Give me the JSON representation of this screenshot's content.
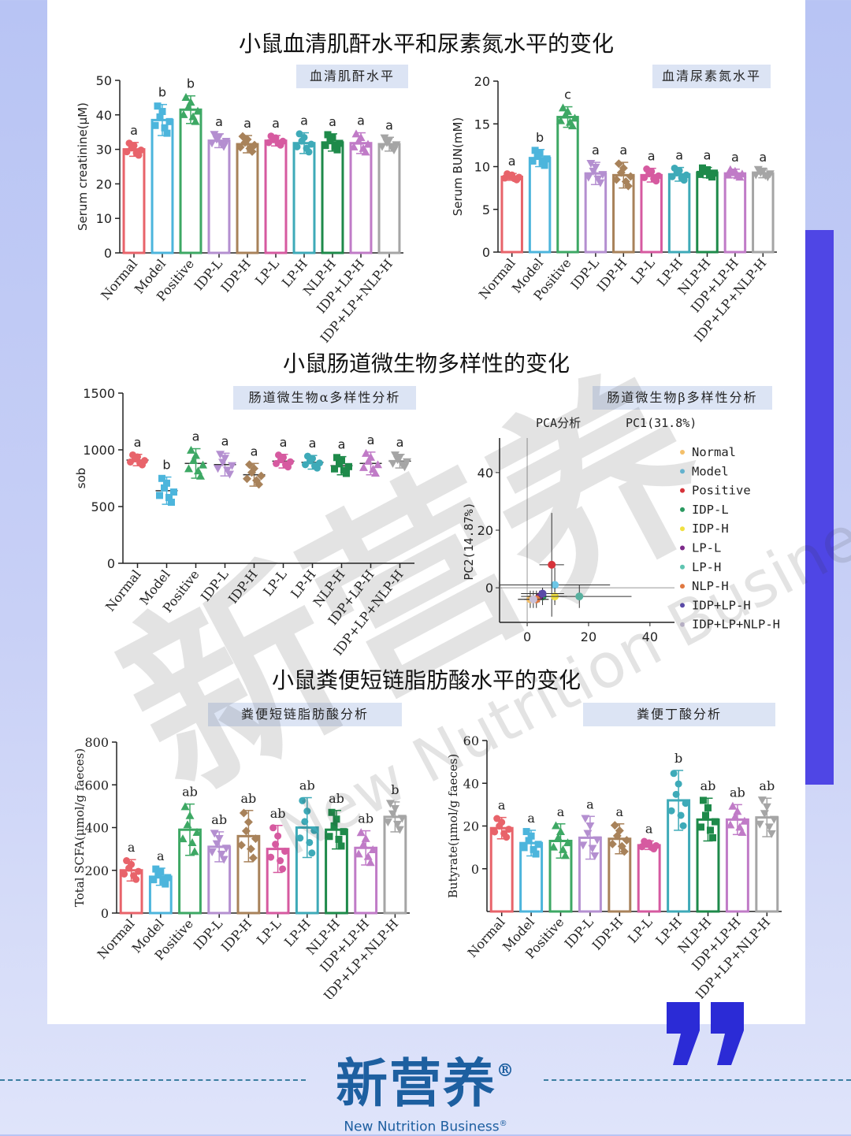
{
  "colors": {
    "Normal": "#e8636a",
    "Model": "#4cb5dc",
    "Positive": "#3da864",
    "IDP-L": "#b48fd0",
    "IDP-H": "#a8825a",
    "LP-L": "#d65aa0",
    "LP-H": "#3eaab8",
    "NLP-H": "#1e8a4a",
    "IDP+LP-H": "#c07bc7",
    "IDP+LP+NLP-H": "#a5a5a5",
    "accent": "#4f46e5",
    "label_bg": "#dce4f4",
    "brand": "#1d5fa0"
  },
  "sections": {
    "kidney_title": "小鼠血清肌酐水平和尿素氮水平的变化",
    "micro_title": "小鼠肠道微生物多样性的变化",
    "scfa_title": "小鼠粪便短链脂肪酸水平的变化"
  },
  "panels": {
    "creatinine": "血清肌酐水平",
    "bun": "血清尿素氮水平",
    "alpha": "肠道微生物α多样性分析",
    "beta": "肠道微生物β多样性分析",
    "scfa": "粪便短链脂肪酸分析",
    "butyrate": "粪便丁酸分析"
  },
  "brand": {
    "name_cn": "新营养",
    "reg": "®",
    "name_en": "New Nutrition Business",
    "reg_en": "®"
  },
  "icons": {
    "quote": "closing-quote-icon"
  },
  "chart_data": [
    {
      "id": "creatinine",
      "type": "bar",
      "categories": [
        "Normal",
        "Model",
        "Positive",
        "IDP-L",
        "IDP-H",
        "LP-L",
        "LP-H",
        "NLP-H",
        "IDP+LP-H",
        "IDP+LP+NLP-H"
      ],
      "values": [
        30,
        38.5,
        41.5,
        32.5,
        31.5,
        32.5,
        31.8,
        32,
        31.8,
        31.5
      ],
      "errors": [
        2,
        4.5,
        4,
        2,
        2.5,
        1.5,
        3,
        2.5,
        3,
        2
      ],
      "letters": [
        "a",
        "b",
        "b",
        "a",
        "a",
        "a",
        "a",
        "a",
        "a",
        "a"
      ],
      "ylabel": "Serum creatinine(μM)",
      "ylim": [
        0,
        50
      ],
      "yticks": [
        0,
        10,
        20,
        30,
        40,
        50
      ]
    },
    {
      "id": "bun",
      "type": "bar",
      "categories": [
        "Normal",
        "Model",
        "Positive",
        "IDP-L",
        "IDP-H",
        "LP-L",
        "LP-H",
        "NLP-H",
        "IDP+LP-H",
        "IDP+LP+NLP-H"
      ],
      "values": [
        8.8,
        11,
        15.8,
        9.2,
        9,
        9,
        9.1,
        9.3,
        9.2,
        9.2
      ],
      "errors": [
        0.4,
        1,
        1.2,
        1.3,
        1.5,
        0.8,
        0.8,
        0.6,
        0.5,
        0.5
      ],
      "letters": [
        "a",
        "b",
        "c",
        "a",
        "a",
        "a",
        "a",
        "a",
        "a",
        "a"
      ],
      "ylabel": "Serum BUN(mM)",
      "ylim": [
        0,
        20
      ],
      "yticks": [
        0,
        5,
        10,
        15,
        20
      ]
    },
    {
      "id": "alpha",
      "type": "scatter",
      "categories": [
        "Normal",
        "Model",
        "Positive",
        "IDP-L",
        "IDP-H",
        "LP-L",
        "LP-H",
        "NLP-H",
        "IDP+LP-H",
        "IDP+LP+NLP-H"
      ],
      "values": [
        910,
        640,
        880,
        870,
        780,
        900,
        890,
        860,
        880,
        900
      ],
      "errors": [
        50,
        120,
        130,
        100,
        100,
        60,
        60,
        80,
        100,
        60
      ],
      "letters": [
        "a",
        "b",
        "a",
        "a",
        "a",
        "a",
        "a",
        "a",
        "a",
        "a"
      ],
      "ylabel": "sob",
      "ylim": [
        0,
        1500
      ],
      "yticks": [
        0,
        500,
        1000,
        1500
      ]
    },
    {
      "id": "pca",
      "type": "scatter",
      "title": "PCA分析",
      "xlabel": "PC1(31.8%)",
      "ylabel": "PC2(14.87%)",
      "xlim": [
        -9,
        48
      ],
      "ylim": [
        -12,
        52
      ],
      "xticks": [
        0,
        20,
        40
      ],
      "yticks": [
        0,
        20,
        40
      ],
      "legend_position": "right",
      "points": [
        {
          "name": "Normal",
          "color": "#f4c06a",
          "x": 1,
          "y": -4,
          "xerr": 4,
          "yerr": 3
        },
        {
          "name": "Model",
          "color": "#6cc6e6",
          "x": 9,
          "y": 1,
          "xerr": 18,
          "yerr": 6
        },
        {
          "name": "Positive",
          "color": "#d6333a",
          "x": 8,
          "y": 8,
          "xerr": 4,
          "yerr": 18
        },
        {
          "name": "IDP-L",
          "color": "#2a9960",
          "x": 5,
          "y": -3,
          "xerr": 7,
          "yerr": 3
        },
        {
          "name": "IDP-H",
          "color": "#f0e040",
          "x": 9,
          "y": -3,
          "xerr": 4,
          "yerr": 3
        },
        {
          "name": "LP-L",
          "color": "#7d2a8a",
          "x": 4,
          "y": -3,
          "xerr": 3,
          "yerr": 2
        },
        {
          "name": "LP-H",
          "color": "#5ec4b0",
          "x": 17,
          "y": -3,
          "xerr": 17,
          "yerr": 4
        },
        {
          "name": "NLP-H",
          "color": "#e07840",
          "x": 3,
          "y": -4,
          "xerr": 4,
          "yerr": 3
        },
        {
          "name": "IDP+LP-H",
          "color": "#5a4aa8",
          "x": 5,
          "y": -2,
          "xerr": 7,
          "yerr": 2
        },
        {
          "name": "IDP+LP+NLP-H",
          "color": "#c8c0d8",
          "x": 2,
          "y": -4,
          "xerr": 5,
          "yerr": 3
        }
      ]
    },
    {
      "id": "scfa",
      "type": "bar",
      "categories": [
        "Normal",
        "Model",
        "Positive",
        "IDP-L",
        "IDP-H",
        "LP-L",
        "LP-H",
        "NLP-H",
        "IDP+LP-H",
        "IDP+LP+NLP-H"
      ],
      "values": [
        200,
        170,
        390,
        310,
        360,
        300,
        400,
        390,
        305,
        450
      ],
      "errors": [
        50,
        40,
        120,
        70,
        120,
        110,
        140,
        90,
        80,
        70
      ],
      "letters": [
        "a",
        "a",
        "ab",
        "ab",
        "ab",
        "ab",
        "ab",
        "ab",
        "ab",
        "b"
      ],
      "ylabel": "Total SCFA(μmol/g faeces)",
      "ylim": [
        0,
        800
      ],
      "yticks": [
        0,
        200,
        400,
        600,
        800
      ]
    },
    {
      "id": "butyrate",
      "type": "bar",
      "categories": [
        "Normal",
        "Model",
        "Positive",
        "IDP-L",
        "IDP-H",
        "LP-L",
        "LP-H",
        "NLP-H",
        "IDP+LP-H",
        "IDP+LP+NLP-H"
      ],
      "values": [
        19,
        12,
        13,
        14.5,
        14,
        11,
        32,
        23,
        23,
        24
      ],
      "errors": [
        5,
        6,
        8,
        10,
        7,
        2,
        14,
        10,
        7,
        9
      ],
      "letters": [
        "a",
        "a",
        "a",
        "a",
        "a",
        "a",
        "b",
        "ab",
        "ab",
        "ab"
      ],
      "ylabel": "Butyrate(μmol/g faeces)",
      "ylim": [
        -20,
        60
      ],
      "yticks": [
        0,
        20,
        40,
        60
      ]
    }
  ]
}
